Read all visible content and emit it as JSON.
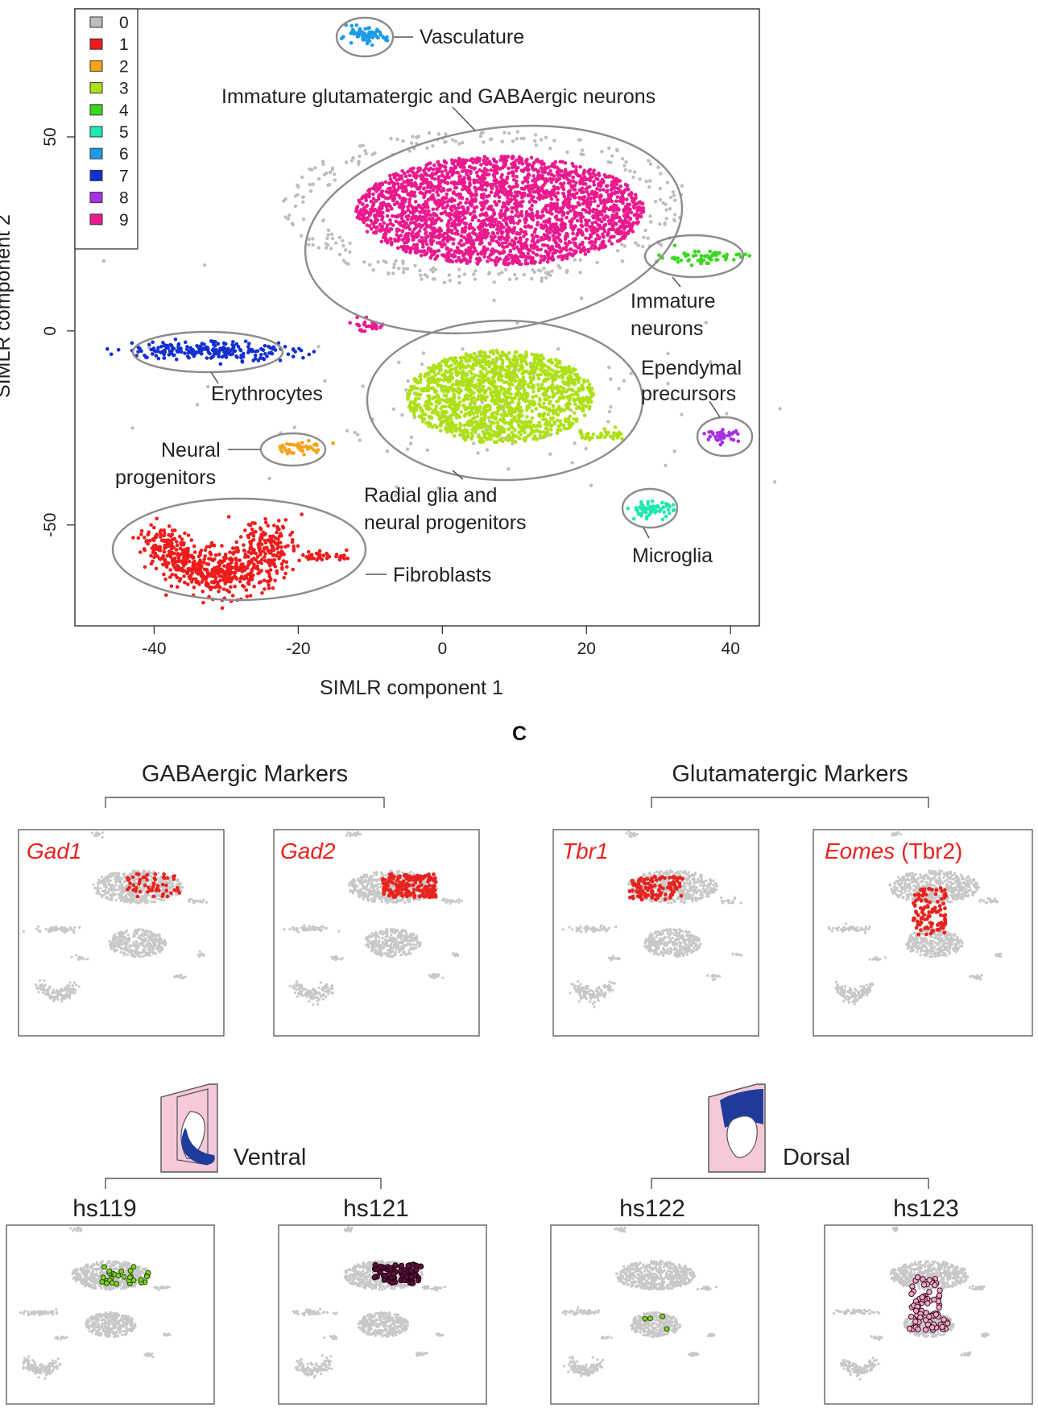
{
  "chart_data": [
    {
      "type": "scatter",
      "xlabel": "SIMLR component 1",
      "ylabel": "SIMLR component 2",
      "xlim": [
        -51,
        44
      ],
      "ylim": [
        -76,
        83
      ],
      "xticks": [
        "-40",
        "-20",
        "0",
        "20",
        "40"
      ],
      "yticks": [
        "-50",
        "0",
        "50"
      ],
      "legend": {
        "placement": "top-left",
        "entries": [
          {
            "label": "0",
            "color": "#bdbdbd"
          },
          {
            "label": "1",
            "color": "#ee1c1c"
          },
          {
            "label": "2",
            "color": "#f5a317"
          },
          {
            "label": "3",
            "color": "#aee018"
          },
          {
            "label": "4",
            "color": "#39d81e"
          },
          {
            "label": "5",
            "color": "#1ee8b0"
          },
          {
            "label": "6",
            "color": "#1e9be6"
          },
          {
            "label": "7",
            "color": "#1530d0"
          },
          {
            "label": "8",
            "color": "#a531e6"
          },
          {
            "label": "9",
            "color": "#ea1a8e"
          }
        ]
      },
      "clusters": [
        {
          "cluster": "9",
          "annotation": "Immature glutamatergic and GABAergic neurons",
          "center": [
            8,
            31
          ],
          "spread": [
            20,
            14
          ],
          "points": 2600
        },
        {
          "cluster": "3",
          "annotation": "Radial glia and neural progenitors",
          "center": [
            8,
            -17
          ],
          "spread": [
            13,
            12
          ],
          "points": 1500
        },
        {
          "cluster": "1",
          "annotation": "Fibroblasts",
          "center": [
            -29,
            -60
          ],
          "spread": [
            8,
            4
          ],
          "points": 700
        },
        {
          "cluster": "7",
          "annotation": "Erythrocytes",
          "center": [
            -32,
            -5
          ],
          "spread": [
            6,
            1.2
          ],
          "points": 220
        },
        {
          "cluster": "4",
          "annotation": "Immature neurons",
          "center": [
            36,
            19
          ],
          "spread": [
            3,
            1
          ],
          "points": 60
        },
        {
          "cluster": "2",
          "annotation": "Neural progenitors",
          "center": [
            -20,
            -30
          ],
          "spread": [
            2,
            0.8
          ],
          "points": 45
        },
        {
          "cluster": "6",
          "annotation": "Vasculature",
          "center": [
            -11,
            76
          ],
          "spread": [
            1.6,
            1
          ],
          "points": 70
        },
        {
          "cluster": "5",
          "annotation": "Microglia",
          "center": [
            29,
            -46
          ],
          "spread": [
            1.5,
            1
          ],
          "points": 70
        },
        {
          "cluster": "8",
          "annotation": "Ependymal precursors",
          "center": [
            39,
            -27
          ],
          "spread": [
            1.1,
            0.7
          ],
          "points": 40
        }
      ],
      "annotations": [
        "Vasculature",
        "Immature glutamatergic and GABAergic neurons",
        "Immature",
        "neurons",
        "Ependymal",
        "precursors",
        "Erythrocytes",
        "Neural",
        "progenitors",
        "Radial glia and",
        "neural progenitors",
        "Microglia",
        "Fibroblasts"
      ]
    },
    {
      "type": "scatter",
      "panel": "C",
      "groups": [
        {
          "title": "GABAergic Markers",
          "panels": [
            {
              "gene": "Gad1"
            },
            {
              "gene": "Gad2"
            }
          ]
        },
        {
          "title": "Glutamatergic Markers",
          "panels": [
            {
              "gene": "Tbr1"
            },
            {
              "gene": "Eomes",
              "suffix": "(Tbr2)"
            }
          ]
        }
      ],
      "region_groups": [
        {
          "title": "Ventral",
          "samples": [
            "hs119",
            "hs121"
          ]
        },
        {
          "title": "Dorsal",
          "samples": [
            "hs122",
            "hs123"
          ]
        }
      ]
    }
  ],
  "panel_letter": "C",
  "colors": {
    "background_cells": "#c8c8c8",
    "marker_red": "#e8231f",
    "green_marker": "#7ed321",
    "purple_marker": "#5a0f3c",
    "pink_marker": "#f2a8c8",
    "schematic_pink": "#f5c8da",
    "schematic_blue": "#1f3b9c"
  }
}
